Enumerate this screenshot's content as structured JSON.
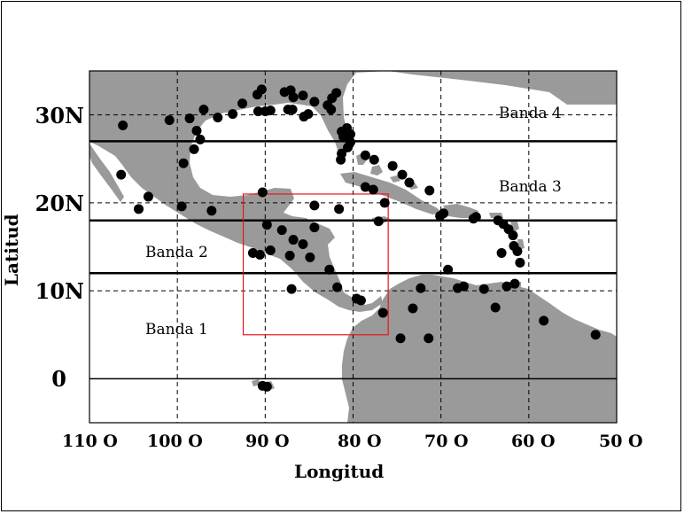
{
  "map": {
    "axis_title_y": "Latitud",
    "axis_title_x": "Longitud",
    "lat_ticks": [
      "30N",
      "20N",
      "10N",
      "0"
    ],
    "lon_ticks": [
      "110 O",
      "100 O",
      "90 O",
      "80 O",
      "70 O",
      "60 O",
      "50 O"
    ],
    "bands": [
      "Banda 1",
      "Banda 2",
      "Banda 3",
      "Banda 4"
    ],
    "colors": {
      "land": "#9a9a9a",
      "water": "#ffffff",
      "stations": "#000000",
      "study_area_box": "#e8141d",
      "band_lines": "#000000"
    },
    "extent": {
      "lon": [
        -110,
        -50
      ],
      "lat": [
        -5,
        35
      ]
    },
    "band_boundaries_lat": [
      12,
      18,
      27
    ],
    "study_area_lon_lat": {
      "lon": [
        -92.5,
        -76
      ],
      "lat": [
        5,
        21
      ]
    },
    "stations": [
      [
        -106.2,
        28.8
      ],
      [
        -100.9,
        29.4
      ],
      [
        -98.6,
        29.6
      ],
      [
        -97,
        30.6
      ],
      [
        -95.4,
        29.7
      ],
      [
        -93.7,
        30.1
      ],
      [
        -92.6,
        31.3
      ],
      [
        -90.9,
        32.3
      ],
      [
        -90.4,
        32.9
      ],
      [
        -90.8,
        30.4
      ],
      [
        -90,
        30.4
      ],
      [
        -89.4,
        30.5
      ],
      [
        -87.8,
        32.6
      ],
      [
        -87.1,
        32.8
      ],
      [
        -86.8,
        32
      ],
      [
        -85.7,
        32.2
      ],
      [
        -84.4,
        31.5
      ],
      [
        -81.9,
        32.5
      ],
      [
        -82.4,
        31.9
      ],
      [
        -87.4,
        30.6
      ],
      [
        -86.9,
        30.6
      ],
      [
        -85.6,
        29.8
      ],
      [
        -85.1,
        30.1
      ],
      [
        -82.9,
        31.1
      ],
      [
        -82.5,
        30.6
      ],
      [
        -81.3,
        28.1
      ],
      [
        -81.1,
        27.5
      ],
      [
        -80.6,
        26.3
      ],
      [
        -81.3,
        25.6
      ],
      [
        -80.7,
        28.5
      ],
      [
        -80.3,
        27.8
      ],
      [
        -80.3,
        26.9
      ],
      [
        -81.4,
        24.9
      ],
      [
        -78.6,
        25.4
      ],
      [
        -77.6,
        24.9
      ],
      [
        -75.5,
        24.2
      ],
      [
        -74.4,
        23.2
      ],
      [
        -73.6,
        22.3
      ],
      [
        -71.3,
        21.4
      ],
      [
        -97.8,
        28.2
      ],
      [
        -97.4,
        27.2
      ],
      [
        -98.1,
        26.1
      ],
      [
        -99.3,
        24.5
      ],
      [
        -106.4,
        23.2
      ],
      [
        -103.3,
        20.7
      ],
      [
        -104.4,
        19.3
      ],
      [
        -99.5,
        19.6
      ],
      [
        -96.1,
        19.1
      ],
      [
        -90.3,
        21.2
      ],
      [
        -78.6,
        21.8
      ],
      [
        -77.7,
        21.5
      ],
      [
        -84.4,
        19.7
      ],
      [
        -81.6,
        19.3
      ],
      [
        -77.1,
        17.9
      ],
      [
        -76.4,
        20
      ],
      [
        -69.7,
        18.8
      ],
      [
        -70.1,
        18.5
      ],
      [
        -66,
        18.4
      ],
      [
        -66.3,
        18.2
      ],
      [
        -63.5,
        18
      ],
      [
        -62.9,
        17.6
      ],
      [
        -62.3,
        17
      ],
      [
        -61.8,
        16.3
      ],
      [
        -61.7,
        15.1
      ],
      [
        -61.3,
        14.5
      ],
      [
        -61,
        13.2
      ],
      [
        -63.1,
        14.3
      ],
      [
        -61.6,
        10.8
      ],
      [
        -62.5,
        10.5
      ],
      [
        -91.4,
        14.3
      ],
      [
        -90.6,
        14.1
      ],
      [
        -89.4,
        14.6
      ],
      [
        -87.2,
        14
      ],
      [
        -86.8,
        15.8
      ],
      [
        -88.1,
        16.9
      ],
      [
        -84.9,
        13.8
      ],
      [
        -85.7,
        15.3
      ],
      [
        -84.4,
        17.2
      ],
      [
        -82.7,
        12.4
      ],
      [
        -89.8,
        17.5
      ],
      [
        -87,
        10.2
      ],
      [
        -81.8,
        10.4
      ],
      [
        -79.6,
        9.1
      ],
      [
        -79.1,
        8.9
      ],
      [
        -76.6,
        7.5
      ],
      [
        -74.6,
        4.6
      ],
      [
        -71.4,
        4.6
      ],
      [
        -72.3,
        10.3
      ],
      [
        -73.2,
        8
      ],
      [
        -69.2,
        12.4
      ],
      [
        -68.1,
        10.3
      ],
      [
        -67.4,
        10.5
      ],
      [
        -65.1,
        10.2
      ],
      [
        -63.8,
        8.1
      ],
      [
        -58.3,
        6.6
      ],
      [
        -52.4,
        5
      ],
      [
        -90.3,
        -0.8
      ],
      [
        -89.8,
        -0.9
      ]
    ]
  }
}
